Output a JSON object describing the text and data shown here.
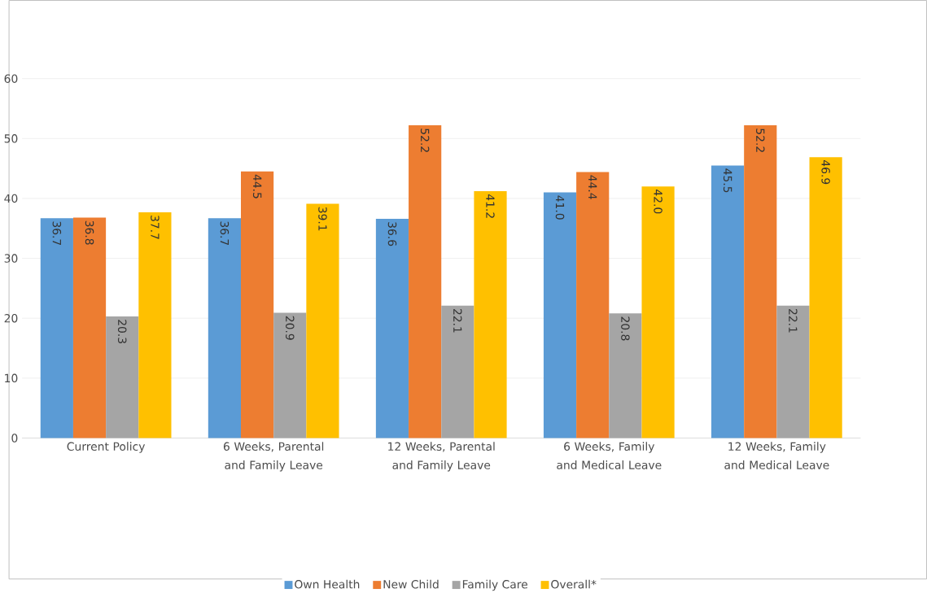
{
  "chart_data": {
    "type": "bar",
    "categories": [
      "Current Policy",
      "6 Weeks, Parental and Family Leave",
      "12 Weeks, Parental and Family Leave",
      "6 Weeks, Family and Medical Leave",
      "12 Weeks, Family and Medical Leave"
    ],
    "series": [
      {
        "name": "Own Health",
        "color": "#5b9bd5",
        "values": [
          36.7,
          36.7,
          36.6,
          41.0,
          45.5
        ],
        "value_labels": [
          "36.7",
          "36.7",
          "36.6",
          "41.0",
          "45.5"
        ]
      },
      {
        "name": "New Child",
        "color": "#ed7d31",
        "values": [
          36.8,
          44.5,
          52.2,
          44.4,
          52.2
        ],
        "value_labels": [
          "36.8",
          "44.5",
          "52.2",
          "44.4",
          "52.2"
        ]
      },
      {
        "name": "Family Care",
        "color": "#a5a5a5",
        "values": [
          20.3,
          20.9,
          22.1,
          20.8,
          22.1
        ],
        "value_labels": [
          "20.3",
          "20.9",
          "22.1",
          "20.8",
          "22.1"
        ]
      },
      {
        "name": "Overall*",
        "color": "#ffc000",
        "values": [
          37.7,
          39.1,
          41.2,
          42.0,
          46.9
        ],
        "value_labels": [
          "37.7",
          "39.1",
          "41.2",
          "42.0",
          "46.9"
        ]
      }
    ],
    "ylim": [
      0,
      60
    ],
    "yticks": [
      0,
      10,
      20,
      30,
      40,
      50,
      60
    ],
    "grid": "y",
    "legend": "bottom"
  }
}
